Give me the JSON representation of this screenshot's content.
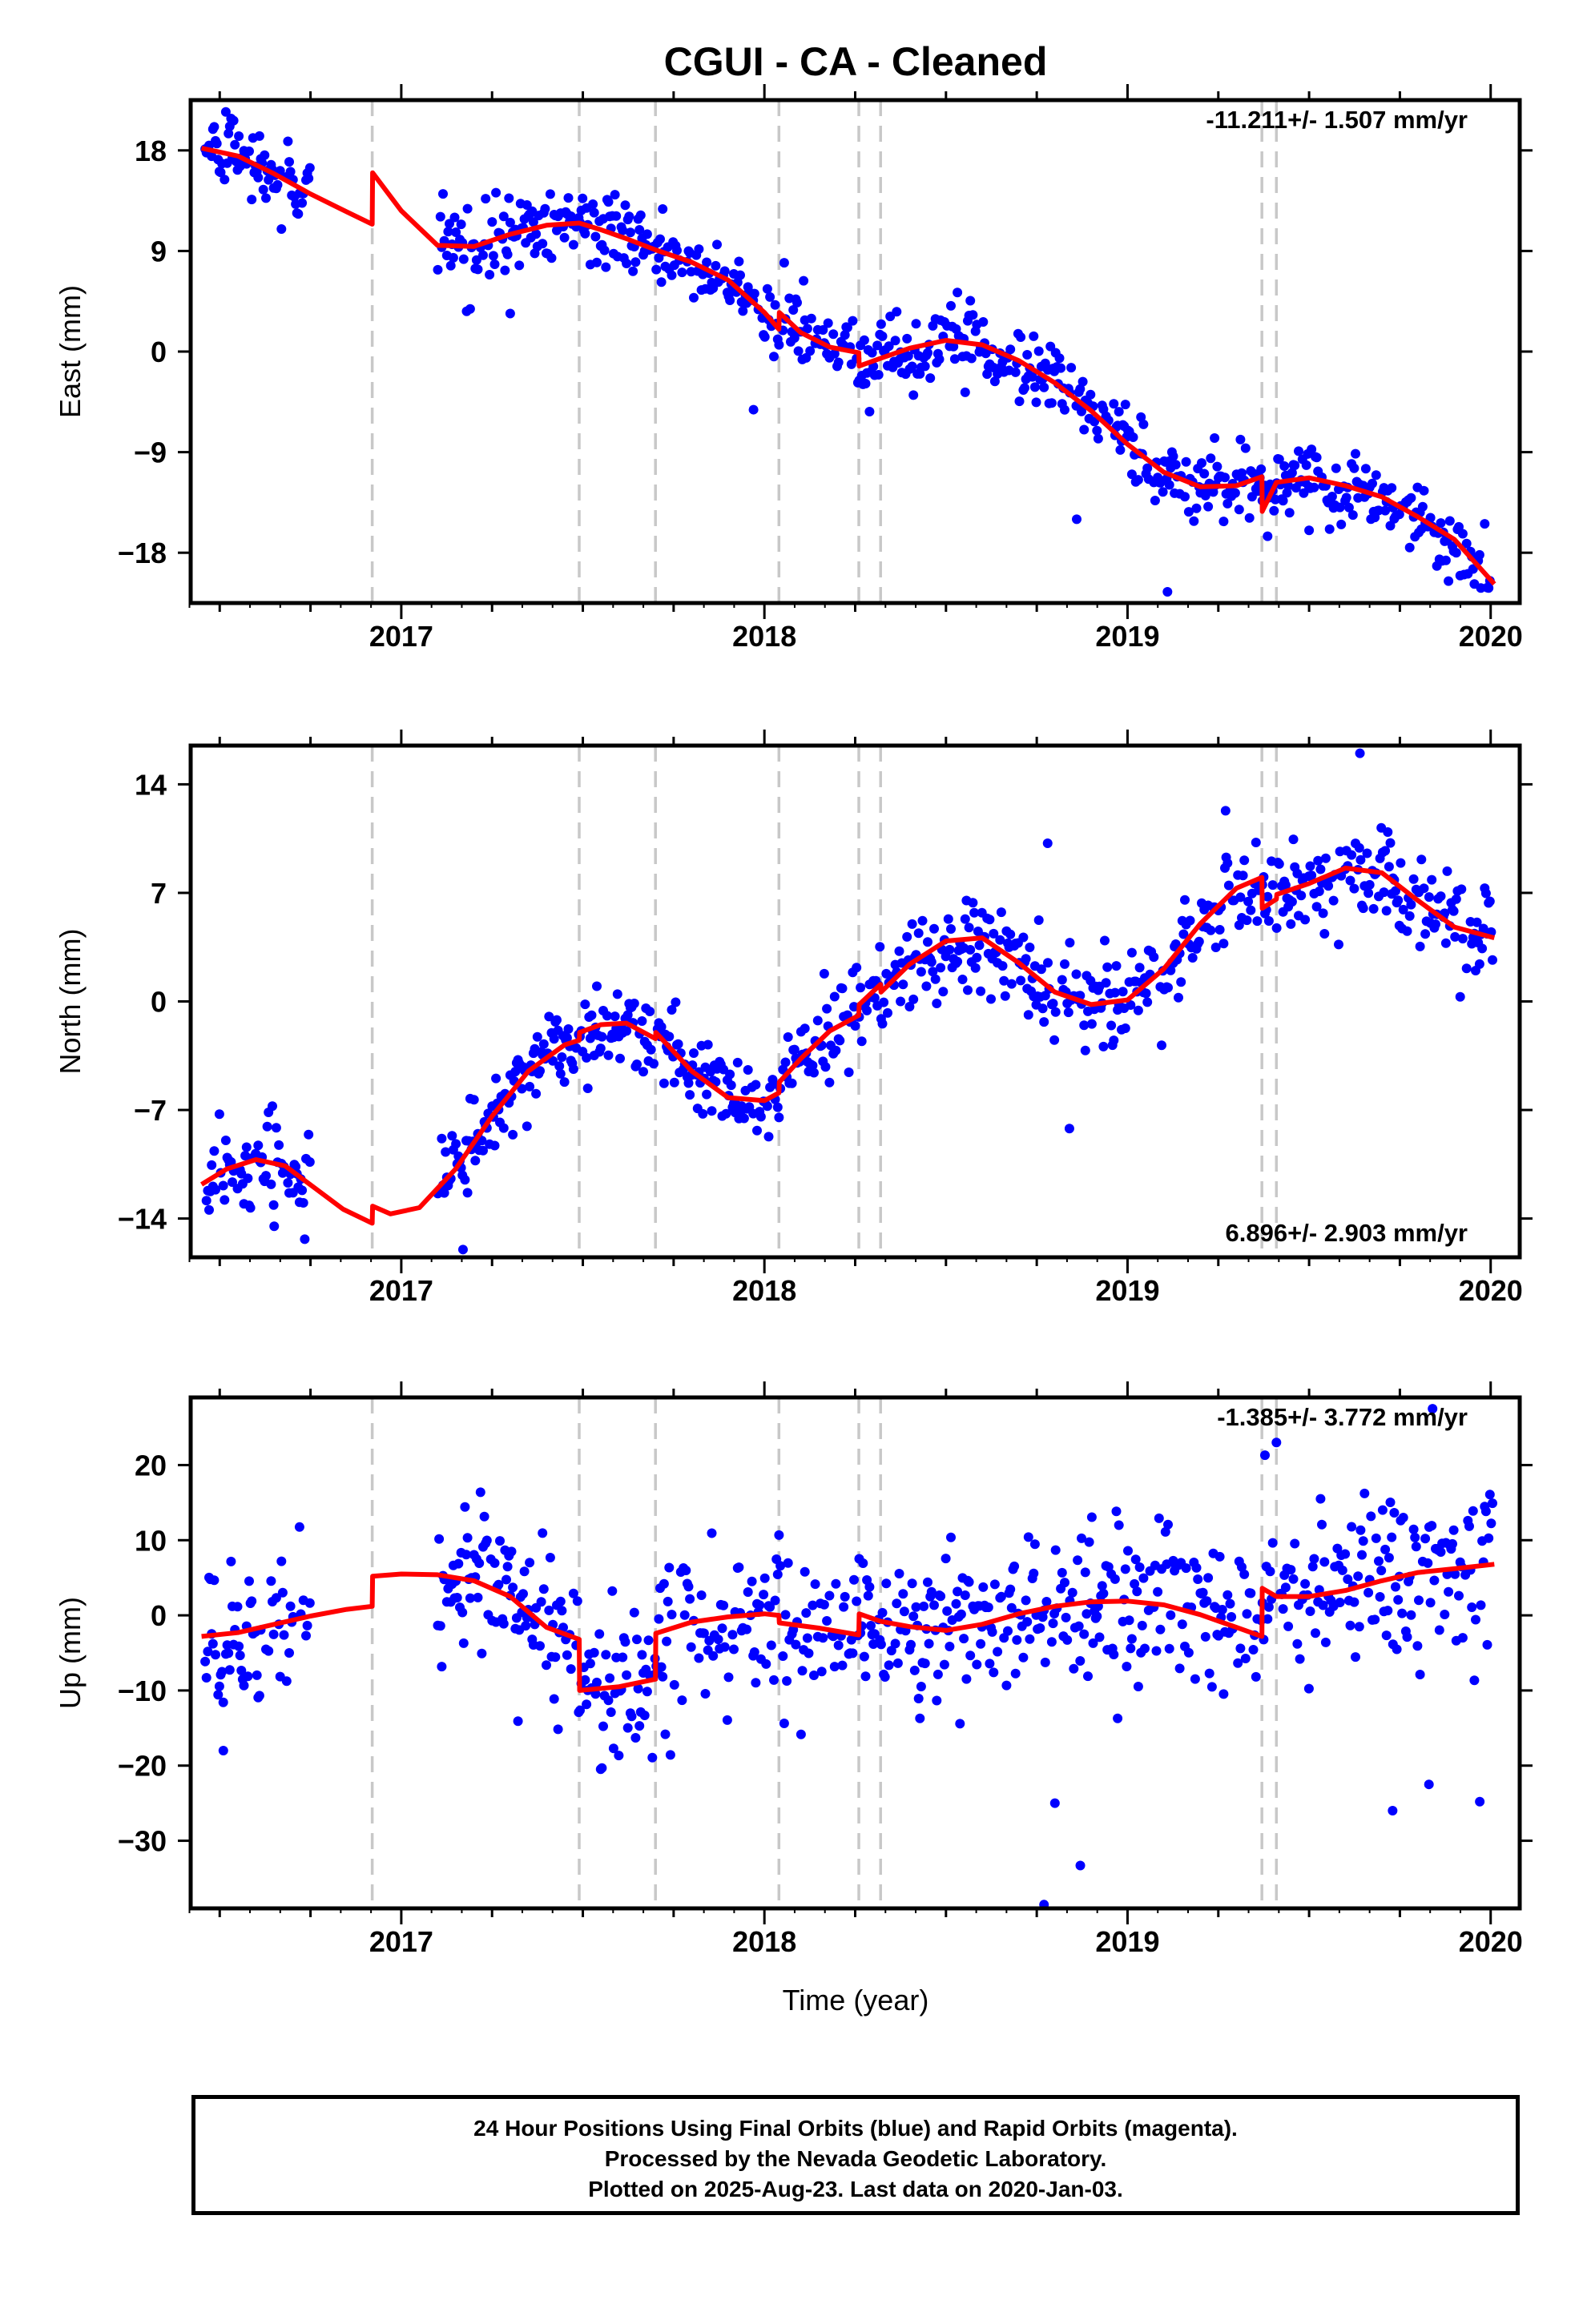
{
  "title": "CGUI  - CA - Cleaned",
  "xlabel": "Time (year)",
  "footer": {
    "line1": "24 Hour Positions Using Final Orbits (blue) and Rapid Orbits (magenta).",
    "line2": "Processed by the Nevada Geodetic Laboratory.",
    "line3": "Plotted on 2025-Aug-23. Last data on 2020-Jan-03."
  },
  "colors": {
    "points": "#0000ff",
    "fit": "#ff0000",
    "steps": "#c8c8c8",
    "frame": "#000000"
  },
  "chart_data": [
    {
      "type": "scatter",
      "title": "CGUI  - CA - Cleaned",
      "xlabel": "",
      "ylabel": "East (mm)",
      "rate_label": "-11.211+/- 1.507 mm/yr",
      "rate_position": "top-right",
      "xlim": [
        2016.42,
        2020.08
      ],
      "ylim": [
        -22.5,
        22.5
      ],
      "xticks": [
        2017,
        2018,
        2019,
        2020
      ],
      "yticks": [
        18,
        9,
        0,
        -9,
        -18
      ],
      "ytick_labels": [
        "18",
        "9",
        "0",
        "−9",
        "−18"
      ],
      "steps": [
        2016.92,
        2017.49,
        2017.7,
        2018.04,
        2018.26,
        2018.32,
        2019.37,
        2019.41
      ],
      "gaps": [
        [
          2016.75,
          2017.1
        ]
      ],
      "scatter": 1.6,
      "outliers": [
        [
          2017.18,
          3.6
        ],
        [
          2017.3,
          3.4
        ],
        [
          2017.97,
          -5.2
        ],
        [
          2018.86,
          -15
        ],
        [
          2019.11,
          -21.5
        ],
        [
          2019.5,
          -16
        ]
      ],
      "series": [
        {
          "name": "",
          "kind": "fit",
          "x": [
            2016.45,
            2016.55,
            2016.65,
            2016.75,
            2016.85,
            2016.92,
            2016.921,
            2017.0,
            2017.1,
            2017.2,
            2017.3,
            2017.4,
            2017.49,
            2017.55,
            2017.62,
            2017.7,
            2017.8,
            2017.9,
            2018.0,
            2018.04,
            2018.041,
            2018.1,
            2018.18,
            2018.26,
            2018.261,
            2018.32,
            2018.4,
            2018.5,
            2018.6,
            2018.7,
            2018.8,
            2018.9,
            2019.0,
            2019.1,
            2019.2,
            2019.3,
            2019.37,
            2019.371,
            2019.41,
            2019.5,
            2019.6,
            2019.7,
            2019.8,
            2019.9,
            2020.01
          ],
          "y": [
            18.2,
            17.5,
            15.9,
            14.1,
            12.5,
            11.4,
            16.0,
            12.6,
            9.5,
            9.4,
            10.5,
            11.3,
            11.5,
            10.9,
            10.1,
            9.1,
            8.0,
            6.4,
            3.5,
            2.0,
            3.5,
            1.7,
            0.4,
            -0.1,
            -1.3,
            -0.6,
            0.3,
            1.0,
            0.6,
            -0.8,
            -2.8,
            -5.3,
            -8.3,
            -10.8,
            -12.1,
            -12.0,
            -11.2,
            -14.3,
            -11.7,
            -11.3,
            -12.0,
            -13.0,
            -14.8,
            -16.8,
            -20.8
          ]
        }
      ]
    },
    {
      "type": "scatter",
      "xlabel": "",
      "ylabel": "North (mm)",
      "rate_label": "6.896+/- 2.903 mm/yr",
      "rate_position": "bottom-right",
      "xlim": [
        2016.42,
        2020.08
      ],
      "ylim": [
        -16.5,
        16.5
      ],
      "xticks": [
        2017,
        2018,
        2019,
        2020
      ],
      "yticks": [
        14,
        7,
        0,
        -7,
        -14
      ],
      "ytick_labels": [
        "14",
        "7",
        "0",
        "−7",
        "−14"
      ],
      "steps": [
        2016.92,
        2017.49,
        2017.7,
        2018.04,
        2018.26,
        2018.32,
        2019.37,
        2019.41
      ],
      "gaps": [
        [
          2016.75,
          2017.1
        ]
      ],
      "scatter": 1.5,
      "outliers": [
        [
          2018.78,
          10.2
        ],
        [
          2018.84,
          -8.2
        ],
        [
          2019.27,
          12.3
        ],
        [
          2019.64,
          16.0
        ],
        [
          2017.17,
          -16.0
        ],
        [
          2016.65,
          -14.5
        ]
      ],
      "series": [
        {
          "name": "",
          "kind": "fit",
          "x": [
            2016.45,
            2016.52,
            2016.6,
            2016.68,
            2016.76,
            2016.84,
            2016.92,
            2016.921,
            2016.97,
            2017.05,
            2017.15,
            2017.25,
            2017.35,
            2017.45,
            2017.49,
            2017.491,
            2017.55,
            2017.62,
            2017.7,
            2017.701,
            2017.8,
            2017.9,
            2018.0,
            2018.04,
            2018.041,
            2018.1,
            2018.18,
            2018.26,
            2018.261,
            2018.32,
            2018.321,
            2018.4,
            2018.5,
            2018.6,
            2018.7,
            2018.8,
            2018.9,
            2019.0,
            2019.1,
            2019.2,
            2019.3,
            2019.37,
            2019.371,
            2019.41,
            2019.411,
            2019.5,
            2019.6,
            2019.7,
            2019.8,
            2019.9,
            2020.01
          ],
          "y": [
            -11.8,
            -10.8,
            -10.2,
            -10.6,
            -12.0,
            -13.4,
            -14.3,
            -13.2,
            -13.7,
            -13.3,
            -10.8,
            -7.4,
            -4.5,
            -2.8,
            -2.5,
            -2.0,
            -1.5,
            -1.4,
            -2.4,
            -2.0,
            -4.5,
            -6.2,
            -6.4,
            -5.9,
            -5.2,
            -3.7,
            -1.9,
            -0.9,
            -0.2,
            1.1,
            0.6,
            2.4,
            3.9,
            4.1,
            2.5,
            0.6,
            -0.2,
            0.1,
            2.1,
            5.0,
            7.3,
            8.0,
            6.0,
            6.6,
            6.9,
            7.6,
            8.6,
            8.3,
            6.5,
            4.8,
            4.1
          ]
        }
      ]
    },
    {
      "type": "scatter",
      "xlabel": "Time (year)",
      "ylabel": "Up (mm)",
      "rate_label": "-1.385+/- 3.772 mm/yr",
      "rate_position": "top-right",
      "xlim": [
        2016.42,
        2020.08
      ],
      "ylim": [
        -39,
        29
      ],
      "xticks": [
        2017,
        2018,
        2019,
        2020
      ],
      "yticks": [
        20,
        10,
        0,
        -10,
        -20,
        -30
      ],
      "ytick_labels": [
        "20",
        "10",
        "0",
        "−10",
        "−20",
        "−30"
      ],
      "steps": [
        2016.92,
        2017.49,
        2017.7,
        2018.04,
        2018.26,
        2018.32,
        2019.37,
        2019.41
      ],
      "gaps": [
        [
          2016.75,
          2017.1
        ]
      ],
      "scatter": 5.5,
      "outliers": [
        [
          2016.51,
          -18
        ],
        [
          2018.77,
          -38.5
        ],
        [
          2018.87,
          -33.3
        ],
        [
          2018.8,
          -25
        ],
        [
          2019.73,
          -26
        ],
        [
          2019.83,
          -22.5
        ],
        [
          2019.97,
          -24.8
        ],
        [
          2019.84,
          27.5
        ],
        [
          2019.41,
          23
        ]
      ],
      "series": [
        {
          "name": "",
          "kind": "fit",
          "x": [
            2016.45,
            2016.55,
            2016.65,
            2016.75,
            2016.85,
            2016.92,
            2016.921,
            2017.0,
            2017.1,
            2017.2,
            2017.3,
            2017.4,
            2017.49,
            2017.491,
            2017.6,
            2017.7,
            2017.701,
            2017.8,
            2017.9,
            2018.0,
            2018.04,
            2018.041,
            2018.15,
            2018.26,
            2018.261,
            2018.32,
            2018.4,
            2018.5,
            2018.6,
            2018.7,
            2018.8,
            2018.9,
            2019.0,
            2019.1,
            2019.2,
            2019.3,
            2019.37,
            2019.371,
            2019.41,
            2019.5,
            2019.6,
            2019.7,
            2019.8,
            2019.9,
            2020.01
          ],
          "y": [
            -2.8,
            -2.3,
            -1.2,
            -0.1,
            0.8,
            1.2,
            5.2,
            5.5,
            5.4,
            4.6,
            2.5,
            -1.6,
            -3.2,
            -10.0,
            -9.5,
            -8.5,
            -2.4,
            -0.9,
            -0.2,
            0.2,
            0.0,
            -1.0,
            -1.7,
            -2.6,
            0.2,
            -0.8,
            -1.5,
            -2.0,
            -1.2,
            0.2,
            1.2,
            1.8,
            1.9,
            1.4,
            0.1,
            -1.6,
            -2.8,
            3.6,
            2.5,
            2.5,
            3.3,
            4.6,
            5.7,
            6.2,
            6.8
          ]
        }
      ]
    }
  ]
}
